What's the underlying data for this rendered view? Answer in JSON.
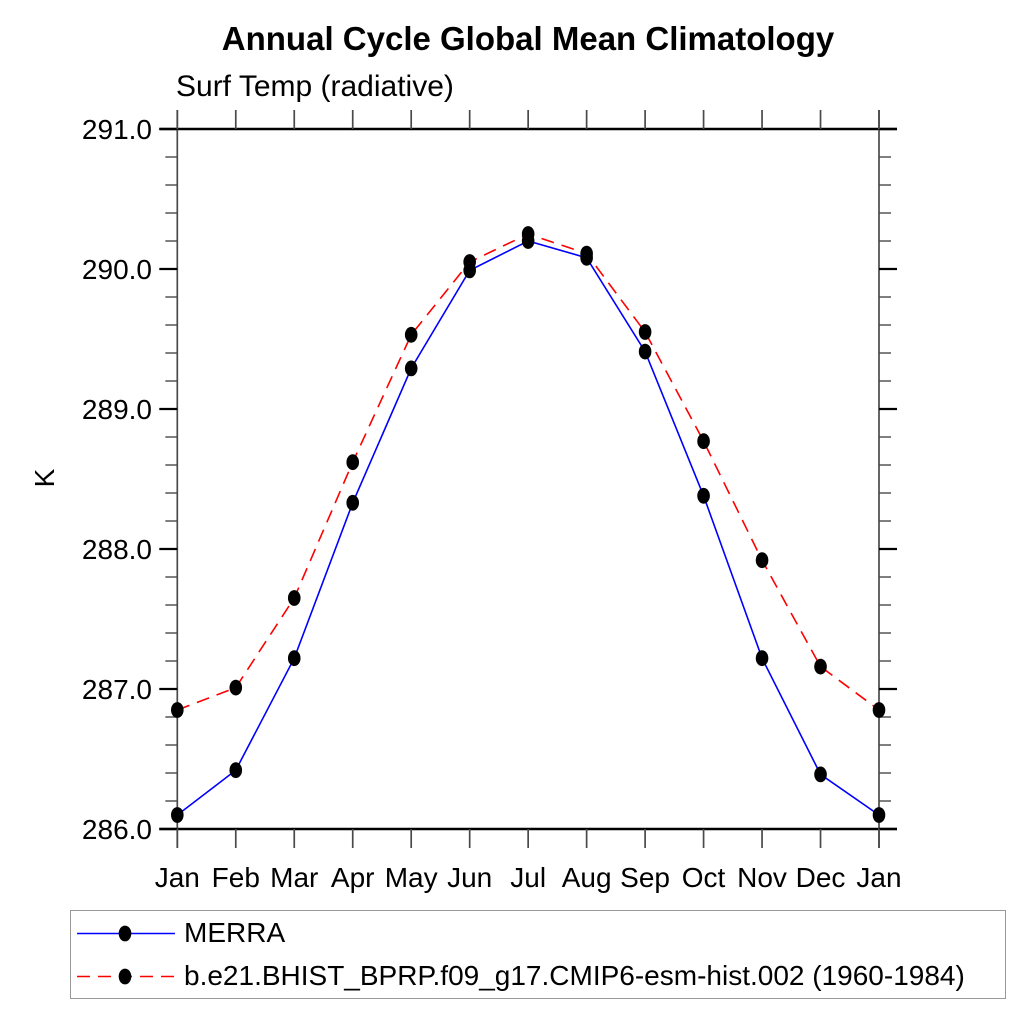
{
  "chart_data": {
    "type": "line",
    "title": "Annual Cycle Global Mean Climatology",
    "subtitle": "Surf Temp (radiative)",
    "xlabel": "",
    "ylabel": "K",
    "categories": [
      "Jan",
      "Feb",
      "Mar",
      "Apr",
      "May",
      "Jun",
      "Jul",
      "Aug",
      "Sep",
      "Oct",
      "Nov",
      "Dec",
      "Jan"
    ],
    "ylim": [
      286.0,
      291.0
    ],
    "ytick_interval": 1.0,
    "yminor_interval": 0.2,
    "ytick_labels": [
      "291.0",
      "290.0",
      "289.0",
      "288.0",
      "287.0",
      "286.0"
    ],
    "grid": false,
    "legend_position": "bottom-left-box",
    "axis_color": "#000000",
    "marker": "filled-circle",
    "marker_color": "#000000",
    "series": [
      {
        "name": "MERRA",
        "color": "#0000ff",
        "style": "solid",
        "values": [
          286.1,
          286.42,
          287.22,
          288.33,
          289.29,
          289.99,
          290.2,
          290.08,
          289.41,
          288.38,
          287.22,
          286.39,
          286.1
        ]
      },
      {
        "name": "b.e21.BHIST_BPRP.f09_g17.CMIP6-esm-hist.002 (1960-1984)",
        "color": "#ff0000",
        "style": "dashed",
        "values": [
          286.85,
          287.01,
          287.65,
          288.62,
          289.53,
          290.05,
          290.25,
          290.11,
          289.55,
          288.77,
          287.92,
          287.16,
          286.85
        ]
      }
    ]
  }
}
